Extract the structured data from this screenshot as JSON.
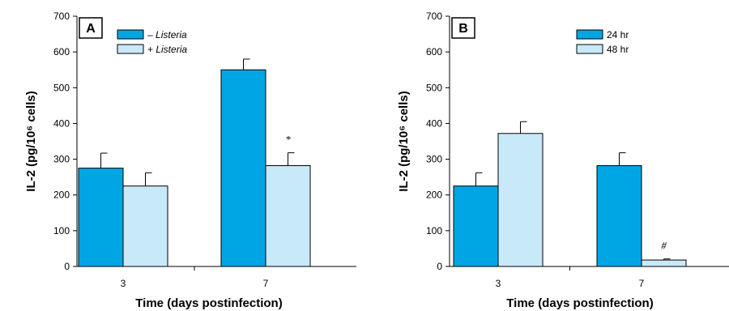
{
  "chart_data": [
    {
      "panel": "A",
      "type": "bar",
      "ylabel": "IL-2 (pg/10⁶ cells)",
      "xlabel": "Time (days postinfection)",
      "ylim": [
        0,
        700
      ],
      "yticks": [
        0,
        100,
        200,
        300,
        400,
        500,
        600,
        700
      ],
      "categories": [
        "3",
        "7"
      ],
      "legend_position": "top-left",
      "series": [
        {
          "name": "– Listeria",
          "color": "#00a6e4",
          "values": [
            275,
            550
          ],
          "errors": [
            42,
            30
          ]
        },
        {
          "name": "+ Listeria",
          "color": "#c8e9f8",
          "values": [
            225,
            282
          ],
          "errors": [
            37,
            36
          ]
        }
      ],
      "annotations": [
        {
          "text": "*",
          "category": "7",
          "series": 1
        }
      ]
    },
    {
      "panel": "B",
      "type": "bar",
      "ylabel": "IL-2 (pg/10⁶ cells)",
      "xlabel": "Time (days postinfection)",
      "ylim": [
        0,
        700
      ],
      "yticks": [
        0,
        100,
        200,
        300,
        400,
        500,
        600,
        700
      ],
      "categories": [
        "3",
        "7"
      ],
      "legend_position": "top-center",
      "series": [
        {
          "name": "24 hr",
          "color": "#00a6e4",
          "values": [
            225,
            282
          ],
          "errors": [
            37,
            36
          ]
        },
        {
          "name": "48 hr",
          "color": "#c8e9f8",
          "values": [
            372,
            18
          ],
          "errors": [
            33,
            3
          ]
        }
      ],
      "annotations": [
        {
          "text": "#",
          "category": "7",
          "series": 1
        }
      ]
    }
  ]
}
